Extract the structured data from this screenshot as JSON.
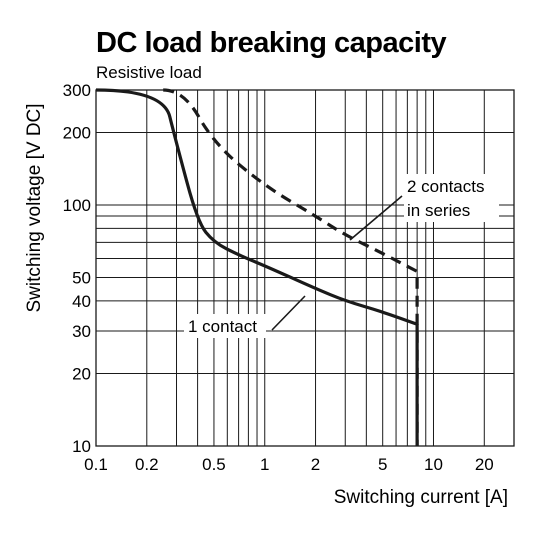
{
  "chart_data": {
    "type": "line",
    "title": "DC load breaking capacity",
    "subtitle": "Resistive load",
    "xlabel": "Switching current [A]",
    "ylabel": "Switching voltage [V DC]",
    "x_scale": "log",
    "y_scale": "log",
    "xlim": [
      0.1,
      30
    ],
    "ylim": [
      10,
      300
    ],
    "x_ticks": [
      0.1,
      0.2,
      0.5,
      1,
      2,
      5,
      10,
      20
    ],
    "x_tick_labels": [
      "0.1",
      "0.2",
      "0.5",
      "1",
      "2",
      "5",
      "10",
      "20"
    ],
    "y_ticks": [
      10,
      20,
      30,
      40,
      50,
      100,
      200,
      300
    ],
    "y_tick_labels": [
      "10",
      "20",
      "30",
      "40",
      "50",
      "100",
      "200",
      "300"
    ],
    "x_grid": [
      0.1,
      0.2,
      0.3,
      0.4,
      0.5,
      0.6,
      0.7,
      0.8,
      0.9,
      1,
      2,
      3,
      4,
      5,
      6,
      7,
      8,
      9,
      10,
      20,
      30
    ],
    "y_grid": [
      10,
      20,
      30,
      40,
      50,
      60,
      70,
      80,
      90,
      100,
      200,
      300
    ],
    "grid": true,
    "series": [
      {
        "name": "1 contact",
        "style": "solid",
        "color": "#1a1a1a",
        "points": [
          [
            0.1,
            300
          ],
          [
            0.25,
            300
          ],
          [
            0.3,
            180
          ],
          [
            0.4,
            85
          ],
          [
            0.5,
            70
          ],
          [
            0.7,
            62
          ],
          [
            1,
            56
          ],
          [
            2,
            45
          ],
          [
            3,
            40
          ],
          [
            5,
            36
          ],
          [
            8,
            32
          ],
          [
            8,
            10
          ]
        ]
      },
      {
        "name": "2 contacts in series",
        "style": "dashed",
        "color": "#1a1a1a",
        "points": [
          [
            0.25,
            300
          ],
          [
            0.33,
            300
          ],
          [
            0.5,
            180
          ],
          [
            1,
            120
          ],
          [
            2,
            90
          ],
          [
            3,
            75
          ],
          [
            5,
            63
          ],
          [
            8,
            53
          ],
          [
            8,
            10
          ]
        ]
      }
    ],
    "annotations": [
      {
        "text": "1 contact",
        "series": 0
      },
      {
        "text": "2 contacts",
        "series": 1
      },
      {
        "text": "in series",
        "series": 1
      }
    ]
  }
}
